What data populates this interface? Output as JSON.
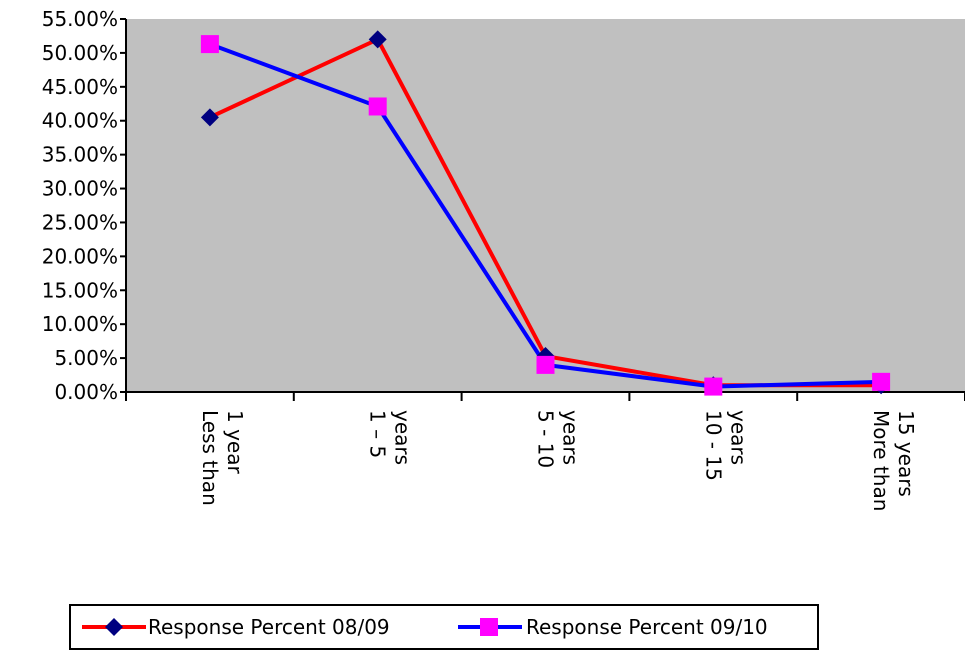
{
  "chart_data": {
    "type": "line",
    "categories": [
      [
        "Less than",
        "1 year"
      ],
      [
        "1 – 5",
        "years"
      ],
      [
        "5 - 10",
        "years"
      ],
      [
        "10 - 15",
        "years"
      ],
      [
        "More than",
        "15 years"
      ]
    ],
    "series": [
      {
        "name": "Response Percent 08/09",
        "color": "#ff0000",
        "marker": "diamond",
        "marker_color": "#000080",
        "values": [
          40.5,
          52.0,
          5.3,
          1.0,
          1.0
        ]
      },
      {
        "name": "Response Percent 09/10",
        "color": "#0000ff",
        "marker": "square",
        "marker_color": "#ff00ff",
        "values": [
          51.3,
          42.1,
          4.0,
          0.8,
          1.5
        ]
      }
    ],
    "ylim": [
      0,
      55
    ],
    "yticks": [
      "0.00%",
      "5.00%",
      "10.00%",
      "15.00%",
      "20.00%",
      "25.00%",
      "30.00%",
      "35.00%",
      "40.00%",
      "45.00%",
      "50.00%",
      "55.00%"
    ],
    "plot_background": "#c0c0c0",
    "legend_position": "bottom",
    "grid": false
  }
}
